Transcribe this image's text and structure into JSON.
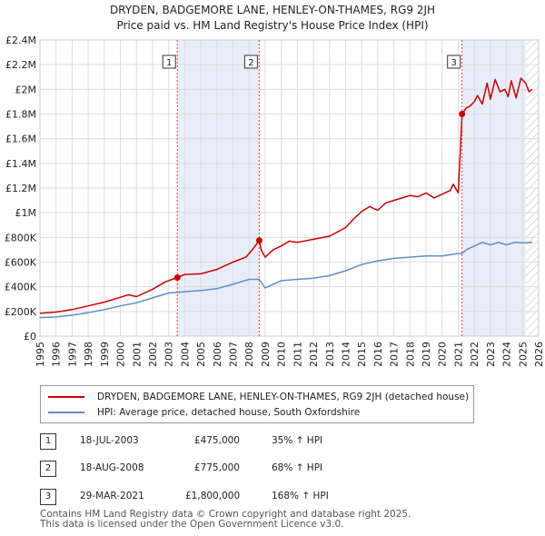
{
  "chart_data": {
    "type": "line",
    "title": "DRYDEN, BADGEMORE LANE, HENLEY-ON-THAMES, RG9 2JH",
    "subtitle": "Price paid vs. HM Land Registry's House Price Index (HPI)",
    "xlabel": "",
    "ylabel": "",
    "xlim": [
      1995,
      2026
    ],
    "ylim": [
      0,
      2400000
    ],
    "x_ticks": [
      "1995",
      "1996",
      "1997",
      "1998",
      "1999",
      "2000",
      "2001",
      "2002",
      "2003",
      "2004",
      "2005",
      "2006",
      "2007",
      "2008",
      "2009",
      "2010",
      "2011",
      "2012",
      "2013",
      "2014",
      "2015",
      "2016",
      "2017",
      "2018",
      "2019",
      "2020",
      "2021",
      "2022",
      "2023",
      "2024",
      "2025",
      "2026"
    ],
    "y_ticks": [
      {
        "value": 0,
        "label": "£0"
      },
      {
        "value": 200000,
        "label": "£200K"
      },
      {
        "value": 400000,
        "label": "£400K"
      },
      {
        "value": 600000,
        "label": "£600K"
      },
      {
        "value": 800000,
        "label": "£800K"
      },
      {
        "value": 1000000,
        "label": "£1M"
      },
      {
        "value": 1200000,
        "label": "£1.2M"
      },
      {
        "value": 1400000,
        "label": "£1.4M"
      },
      {
        "value": 1600000,
        "label": "£1.6M"
      },
      {
        "value": 1800000,
        "label": "£1.8M"
      },
      {
        "value": 2000000,
        "label": "£2M"
      },
      {
        "value": 2200000,
        "label": "£2.2M"
      },
      {
        "value": 2400000,
        "label": "£2.4M"
      }
    ],
    "grid": true,
    "shaded_periods": [
      [
        2003.54,
        2008.63
      ],
      [
        2021.24,
        2025.2
      ]
    ],
    "hatched_from": 2025.2,
    "series": [
      {
        "name": "DRYDEN, BADGEMORE LANE, HENLEY-ON-THAMES, RG9 2JH (detached house)",
        "color": "#cc0000",
        "x": [
          1995.0,
          1996.0,
          1997.0,
          1998.0,
          1999.0,
          2000.0,
          2000.5,
          2001.0,
          2002.0,
          2002.8,
          2003.54,
          2004.0,
          2005.0,
          2006.0,
          2007.0,
          2007.8,
          2008.2,
          2008.63,
          2008.75,
          2009.0,
          2009.5,
          2010.0,
          2010.5,
          2011.0,
          2012.0,
          2013.0,
          2014.0,
          2014.5,
          2015.0,
          2015.5,
          2016.0,
          2016.5,
          2017.0,
          2017.5,
          2018.0,
          2018.5,
          2019.0,
          2019.5,
          2020.0,
          2020.5,
          2020.7,
          2021.0,
          2021.24,
          2021.35,
          2021.5,
          2021.7,
          2022.0,
          2022.2,
          2022.5,
          2022.8,
          2023.0,
          2023.3,
          2023.6,
          2023.9,
          2024.1,
          2024.3,
          2024.6,
          2024.9,
          2025.2,
          2025.4,
          2025.6
        ],
        "values": [
          185000,
          195000,
          215000,
          245000,
          275000,
          315000,
          335000,
          320000,
          380000,
          440000,
          475000,
          500000,
          505000,
          540000,
          600000,
          640000,
          700000,
          775000,
          700000,
          640000,
          700000,
          730000,
          770000,
          760000,
          785000,
          810000,
          880000,
          950000,
          1010000,
          1050000,
          1020000,
          1080000,
          1100000,
          1120000,
          1140000,
          1130000,
          1160000,
          1120000,
          1150000,
          1180000,
          1230000,
          1160000,
          1800000,
          1820000,
          1850000,
          1860000,
          1900000,
          1950000,
          1880000,
          2050000,
          1920000,
          2080000,
          1980000,
          2000000,
          1940000,
          2070000,
          1930000,
          2090000,
          2050000,
          1980000,
          2000000
        ]
      },
      {
        "name": "HPI: Average price, detached house, South Oxfordshire",
        "color": "#5b8fc9",
        "x": [
          1995.0,
          1996.0,
          1997.0,
          1998.0,
          1999.0,
          2000.0,
          2001.0,
          2002.0,
          2003.0,
          2004.0,
          2005.0,
          2006.0,
          2007.0,
          2008.0,
          2008.63,
          2009.0,
          2009.5,
          2010.0,
          2011.0,
          2012.0,
          2013.0,
          2014.0,
          2015.0,
          2016.0,
          2017.0,
          2018.0,
          2019.0,
          2020.0,
          2020.5,
          2021.0,
          2021.24,
          2021.5,
          2022.0,
          2022.5,
          2023.0,
          2023.5,
          2024.0,
          2024.5,
          2025.0,
          2025.6
        ],
        "values": [
          150000,
          155000,
          170000,
          190000,
          215000,
          245000,
          270000,
          310000,
          350000,
          360000,
          370000,
          385000,
          420000,
          460000,
          460000,
          390000,
          420000,
          450000,
          460000,
          470000,
          490000,
          530000,
          580000,
          610000,
          630000,
          640000,
          650000,
          650000,
          660000,
          670000,
          670000,
          700000,
          730000,
          760000,
          740000,
          760000,
          740000,
          760000,
          755000,
          760000
        ]
      }
    ],
    "sales": [
      {
        "label": "1",
        "x": 2003.54,
        "value": 475000
      },
      {
        "label": "2",
        "x": 2008.63,
        "value": 775000
      },
      {
        "label": "3",
        "x": 2021.24,
        "value": 1800000
      }
    ]
  },
  "legend": {
    "property_label": "DRYDEN, BADGEMORE LANE, HENLEY-ON-THAMES, RG9 2JH (detached house)",
    "hpi_label": "HPI: Average price, detached house, South Oxfordshire",
    "property_color": "#cc0000",
    "hpi_color": "#5b8fc9"
  },
  "sales_table": [
    {
      "num": "1",
      "date": "18-JUL-2003",
      "price": "£475,000",
      "delta": "35% ↑ HPI"
    },
    {
      "num": "2",
      "date": "18-AUG-2008",
      "price": "£775,000",
      "delta": "68% ↑ HPI"
    },
    {
      "num": "3",
      "date": "29-MAR-2021",
      "price": "£1,800,000",
      "delta": "168% ↑ HPI"
    }
  ],
  "footer": {
    "line1": "Contains HM Land Registry data © Crown copyright and database right 2025.",
    "line2": "This data is licensed under the Open Government Licence v3.0."
  }
}
